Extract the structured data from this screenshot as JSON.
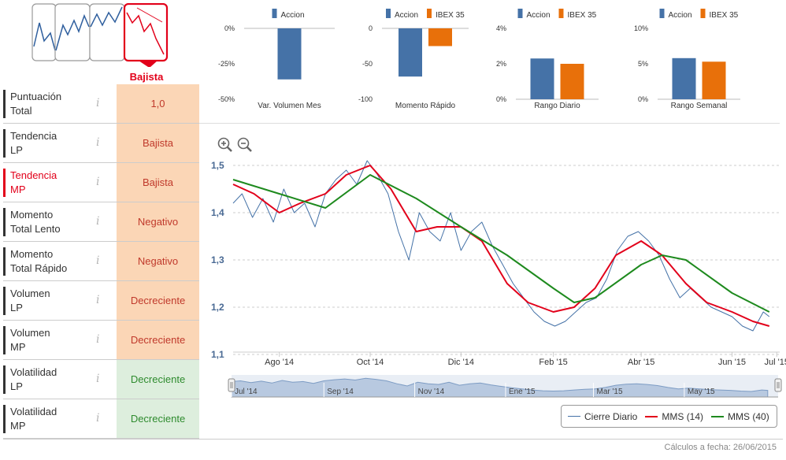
{
  "trend": {
    "selected_label": "Bajista",
    "icons": [
      "trend-icon-range",
      "trend-icon-uptrend",
      "trend-icon-sideways",
      "trend-icon-downtrend"
    ]
  },
  "rating_table": [
    {
      "label_1": "Puntuación",
      "label_2": "Total",
      "value": "1,0",
      "status": "neg",
      "active": false
    },
    {
      "label_1": "Tendencia",
      "label_2": "LP",
      "value": "Bajista",
      "status": "neg",
      "active": false
    },
    {
      "label_1": "Tendencia",
      "label_2": "MP",
      "value": "Bajista",
      "status": "neg",
      "active": true
    },
    {
      "label_1": "Momento",
      "label_2": "Total Lento",
      "value": "Negativo",
      "status": "neg",
      "active": false
    },
    {
      "label_1": "Momento",
      "label_2": "Total Rápido",
      "value": "Negativo",
      "status": "neg",
      "active": false
    },
    {
      "label_1": "Volumen",
      "label_2": "LP",
      "value": "Decreciente",
      "status": "neg",
      "active": false
    },
    {
      "label_1": "Volumen",
      "label_2": "MP",
      "value": "Decreciente",
      "status": "neg",
      "active": false
    },
    {
      "label_1": "Volatilidad",
      "label_2": "LP",
      "value": "Decreciente",
      "status": "pos",
      "active": false
    },
    {
      "label_1": "Volatilidad",
      "label_2": "MP",
      "value": "Decreciente",
      "status": "pos",
      "active": false
    }
  ],
  "info_glyph": "i",
  "colors": {
    "accion": "#4572a7",
    "ibex": "#e8700a",
    "close": "#4572a7",
    "mms14": "#e2001a",
    "mms40": "#1e8a1e",
    "negative_bg": "#fbd6b6",
    "positive_bg": "#ddeedd"
  },
  "chart_data": [
    {
      "type": "bar",
      "title": "Var. Volumen Mes",
      "series": [
        {
          "name": "Accion",
          "values": [
            -36
          ]
        }
      ],
      "ylim": [
        -50,
        0
      ],
      "yticks": [
        "0%",
        "-25%",
        "-50%"
      ]
    },
    {
      "type": "bar",
      "title": "Momento Rápido",
      "series": [
        {
          "name": "Accion",
          "values": [
            -68
          ]
        },
        {
          "name": "IBEX 35",
          "values": [
            -25
          ]
        }
      ],
      "ylim": [
        -100,
        0
      ],
      "yticks": [
        "0",
        "-50",
        "-100"
      ]
    },
    {
      "type": "bar",
      "title": "Rango Diario",
      "series": [
        {
          "name": "Accion",
          "values": [
            2.3
          ]
        },
        {
          "name": "IBEX 35",
          "values": [
            2.0
          ]
        }
      ],
      "ylim": [
        0,
        4
      ],
      "yticks": [
        "4%",
        "2%",
        "0%"
      ]
    },
    {
      "type": "bar",
      "title": "Rango Semanal",
      "series": [
        {
          "name": "Accion",
          "values": [
            5.8
          ]
        },
        {
          "name": "IBEX 35",
          "values": [
            5.3
          ]
        }
      ],
      "ylim": [
        0,
        10
      ],
      "yticks": [
        "10%",
        "5%",
        "0%"
      ]
    },
    {
      "type": "line",
      "ylim": [
        1.1,
        1.5
      ],
      "yticks": [
        "1,5",
        "1,4",
        "1,3",
        "1,2",
        "1,1"
      ],
      "xticks": [
        "Ago '14",
        "Oct '14",
        "Dic '14",
        "Feb '15",
        "Abr '15",
        "Jun '15",
        "Jul '15"
      ],
      "xtick_dates": [
        "2014-08-01",
        "2014-10-01",
        "2014-12-01",
        "2015-02-01",
        "2015-04-01",
        "2015-06-01",
        "2015-07-01"
      ],
      "x_start": "2014-07-01",
      "x_end": "2015-07-03",
      "series": [
        {
          "name": "Cierre Diario",
          "x": [
            "2014-07-01",
            "2014-07-07",
            "2014-07-14",
            "2014-07-21",
            "2014-07-28",
            "2014-08-04",
            "2014-08-11",
            "2014-08-18",
            "2014-08-25",
            "2014-09-01",
            "2014-09-08",
            "2014-09-15",
            "2014-09-22",
            "2014-09-29",
            "2014-10-06",
            "2014-10-13",
            "2014-10-20",
            "2014-10-27",
            "2014-11-03",
            "2014-11-10",
            "2014-11-17",
            "2014-11-24",
            "2014-12-01",
            "2014-12-08",
            "2014-12-15",
            "2014-12-22",
            "2014-12-29",
            "2015-01-05",
            "2015-01-12",
            "2015-01-19",
            "2015-01-26",
            "2015-02-02",
            "2015-02-09",
            "2015-02-16",
            "2015-02-23",
            "2015-03-02",
            "2015-03-09",
            "2015-03-16",
            "2015-03-23",
            "2015-03-30",
            "2015-04-06",
            "2015-04-13",
            "2015-04-20",
            "2015-04-27",
            "2015-05-04",
            "2015-05-11",
            "2015-05-18",
            "2015-05-25",
            "2015-06-01",
            "2015-06-08",
            "2015-06-15",
            "2015-06-22",
            "2015-06-26"
          ],
          "values": [
            1.42,
            1.44,
            1.39,
            1.43,
            1.38,
            1.45,
            1.4,
            1.42,
            1.37,
            1.44,
            1.47,
            1.49,
            1.46,
            1.51,
            1.48,
            1.44,
            1.36,
            1.3,
            1.4,
            1.36,
            1.34,
            1.4,
            1.32,
            1.36,
            1.38,
            1.33,
            1.29,
            1.25,
            1.22,
            1.19,
            1.17,
            1.16,
            1.17,
            1.19,
            1.21,
            1.22,
            1.26,
            1.32,
            1.35,
            1.36,
            1.34,
            1.31,
            1.26,
            1.22,
            1.24,
            1.22,
            1.2,
            1.19,
            1.18,
            1.16,
            1.15,
            1.19,
            1.18
          ]
        },
        {
          "name": "MMS (14)",
          "x": [
            "2014-07-01",
            "2014-07-15",
            "2014-08-01",
            "2014-08-15",
            "2014-09-01",
            "2014-09-15",
            "2014-10-01",
            "2014-10-15",
            "2014-11-01",
            "2014-11-15",
            "2014-12-01",
            "2014-12-15",
            "2015-01-01",
            "2015-01-15",
            "2015-02-01",
            "2015-02-15",
            "2015-03-01",
            "2015-03-15",
            "2015-04-01",
            "2015-04-15",
            "2015-05-01",
            "2015-05-15",
            "2015-06-01",
            "2015-06-15",
            "2015-06-26"
          ],
          "values": [
            1.46,
            1.44,
            1.4,
            1.42,
            1.44,
            1.48,
            1.5,
            1.45,
            1.36,
            1.37,
            1.37,
            1.34,
            1.25,
            1.21,
            1.19,
            1.2,
            1.24,
            1.31,
            1.34,
            1.31,
            1.25,
            1.21,
            1.19,
            1.17,
            1.16
          ]
        },
        {
          "name": "MMS (40)",
          "x": [
            "2014-07-01",
            "2014-08-01",
            "2014-09-01",
            "2014-10-01",
            "2014-11-01",
            "2014-12-01",
            "2015-01-01",
            "2015-02-01",
            "2015-02-15",
            "2015-03-01",
            "2015-04-01",
            "2015-04-15",
            "2015-05-01",
            "2015-06-01",
            "2015-06-26"
          ],
          "values": [
            1.47,
            1.44,
            1.41,
            1.48,
            1.43,
            1.37,
            1.31,
            1.24,
            1.21,
            1.22,
            1.29,
            1.31,
            1.3,
            1.23,
            1.19
          ]
        }
      ],
      "navigator_ticks": [
        "Jul '14",
        "Sep '14",
        "Nov '14",
        "Ene '15",
        "Mar '15",
        "May '15"
      ],
      "navigator_dates": [
        "2014-07-01",
        "2014-09-01",
        "2014-11-01",
        "2015-01-01",
        "2015-03-01",
        "2015-05-01"
      ]
    }
  ],
  "legend": [
    "Cierre Diario",
    "MMS (14)",
    "MMS (40)"
  ],
  "footer": "Cálculos a fecha: 26/06/2015"
}
